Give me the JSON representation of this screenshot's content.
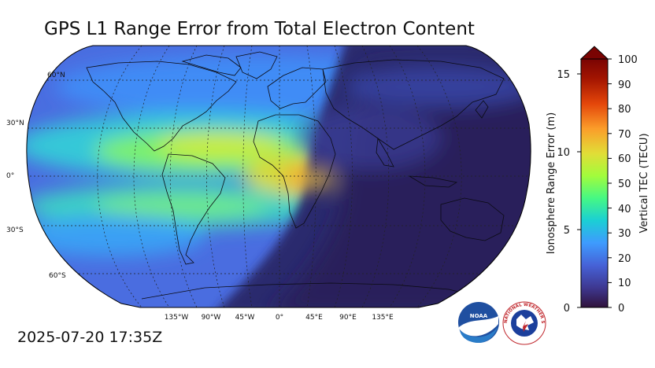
{
  "title": "GPS L1 Range Error from Total Electron Content",
  "timestamp": "2025-07-20 17:35Z",
  "map": {
    "projection": "Robinson",
    "lat_labels": [
      "60°N",
      "30°N",
      "0°",
      "30°S",
      "60°S"
    ],
    "lon_labels": [
      "135°W",
      "90°W",
      "45°W",
      "0°",
      "45°E",
      "90°E",
      "135°E"
    ],
    "gridlines": "dashed"
  },
  "colorbar": {
    "right_label": "Vertical TEC (TECU)",
    "left_label": "Ionosphere Range Error (m)",
    "right_ticks": [
      "0",
      "10",
      "20",
      "30",
      "40",
      "50",
      "60",
      "70",
      "80",
      "90",
      "100"
    ],
    "left_ticks": [
      "0",
      "5",
      "10",
      "15"
    ],
    "extend": "max",
    "colors": [
      "#30123b",
      "#3e3891",
      "#4662d7",
      "#3e9bfe",
      "#1bcfd4",
      "#46f884",
      "#a2fc3c",
      "#e1dd37",
      "#fb9d2a",
      "#e4460a",
      "#a31501",
      "#7a0403"
    ]
  },
  "logos": {
    "noaa_text": "NOAA",
    "nws_text": "NATIONAL WEATHER SERVICE"
  }
}
